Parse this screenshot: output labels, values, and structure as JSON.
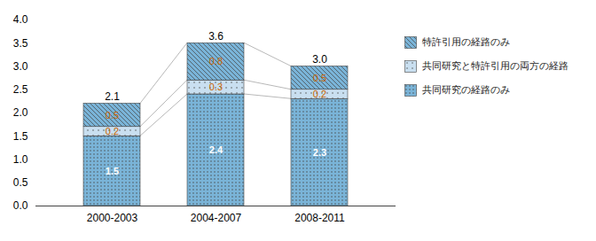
{
  "chart_data": {
    "type": "bar",
    "stacked": true,
    "categories": [
      "2000-2003",
      "2004-2007",
      "2008-2011"
    ],
    "series": [
      {
        "name": "共同研究の経路のみ",
        "color": "#7ab4d8",
        "values": [
          1.5,
          2.4,
          2.3
        ]
      },
      {
        "name": "共同研究と特許引用の両方の経路",
        "color": "#c9dff0",
        "values": [
          0.2,
          0.3,
          0.2
        ]
      },
      {
        "name": "特許引用の経路のみ",
        "color": "#7ab4d8",
        "values": [
          0.5,
          0.8,
          0.5
        ]
      }
    ],
    "totals": [
      {
        "value": 2.1,
        "label": "2.1"
      },
      {
        "value": 3.6,
        "label": "3.6"
      },
      {
        "value": 3.0,
        "label": "3.0"
      }
    ],
    "ylim": [
      0,
      4.0
    ],
    "yticks": [
      {
        "value": 0,
        "label": "0.0"
      },
      0.5,
      {
        "value": 1,
        "label": "1.0"
      },
      1.5,
      {
        "value": 2,
        "label": "2.0"
      },
      2.5,
      {
        "value": 3,
        "label": "3.0"
      },
      3.5,
      {
        "value": 4,
        "label": "4.0"
      }
    ],
    "grid": false,
    "legend": "right",
    "data_labels": true
  }
}
